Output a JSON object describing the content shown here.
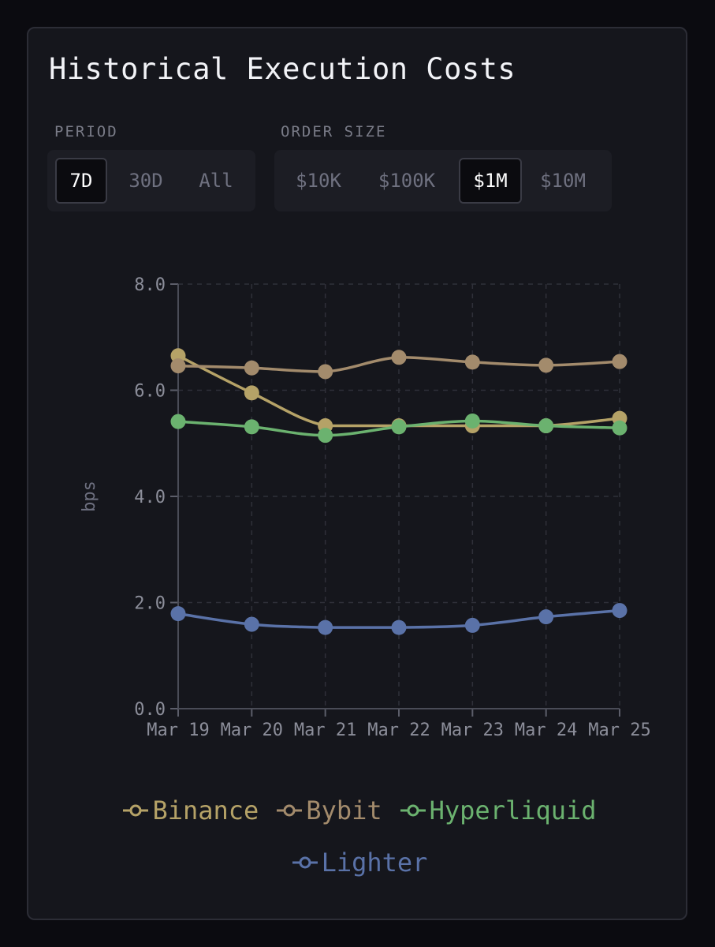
{
  "title": "Historical Execution Costs",
  "period": {
    "label": "PERIOD",
    "options": [
      "7D",
      "30D",
      "All"
    ],
    "selected": "7D"
  },
  "order_size": {
    "label": "ORDER SIZE",
    "options": [
      "$10K",
      "$100K",
      "$1M",
      "$10M"
    ],
    "selected": "$1M"
  },
  "chart_data": {
    "type": "line",
    "title": "",
    "xlabel": "",
    "ylabel": "bps",
    "ylim": [
      0,
      8
    ],
    "yticks": [
      "0.0",
      "2.0",
      "4.0",
      "6.0",
      "8.0"
    ],
    "grid": true,
    "legend_position": "bottom",
    "categories": [
      "Mar 19",
      "Mar 20",
      "Mar 21",
      "Mar 22",
      "Mar 23",
      "Mar 24",
      "Mar 25"
    ],
    "series": [
      {
        "name": "Binance",
        "color": "#b5a267",
        "values": [
          6.65,
          5.95,
          5.33,
          5.33,
          5.33,
          5.33,
          5.47
        ]
      },
      {
        "name": "Bybit",
        "color": "#a38b6c",
        "values": [
          6.46,
          6.42,
          6.35,
          6.62,
          6.53,
          6.47,
          6.54
        ]
      },
      {
        "name": "Hyperliquid",
        "color": "#6bb26f",
        "values": [
          5.41,
          5.31,
          5.15,
          5.31,
          5.42,
          5.33,
          5.29
        ]
      },
      {
        "name": "Lighter",
        "color": "#5a72a8",
        "values": [
          1.79,
          1.59,
          1.53,
          1.53,
          1.57,
          1.73,
          1.85
        ]
      }
    ]
  }
}
